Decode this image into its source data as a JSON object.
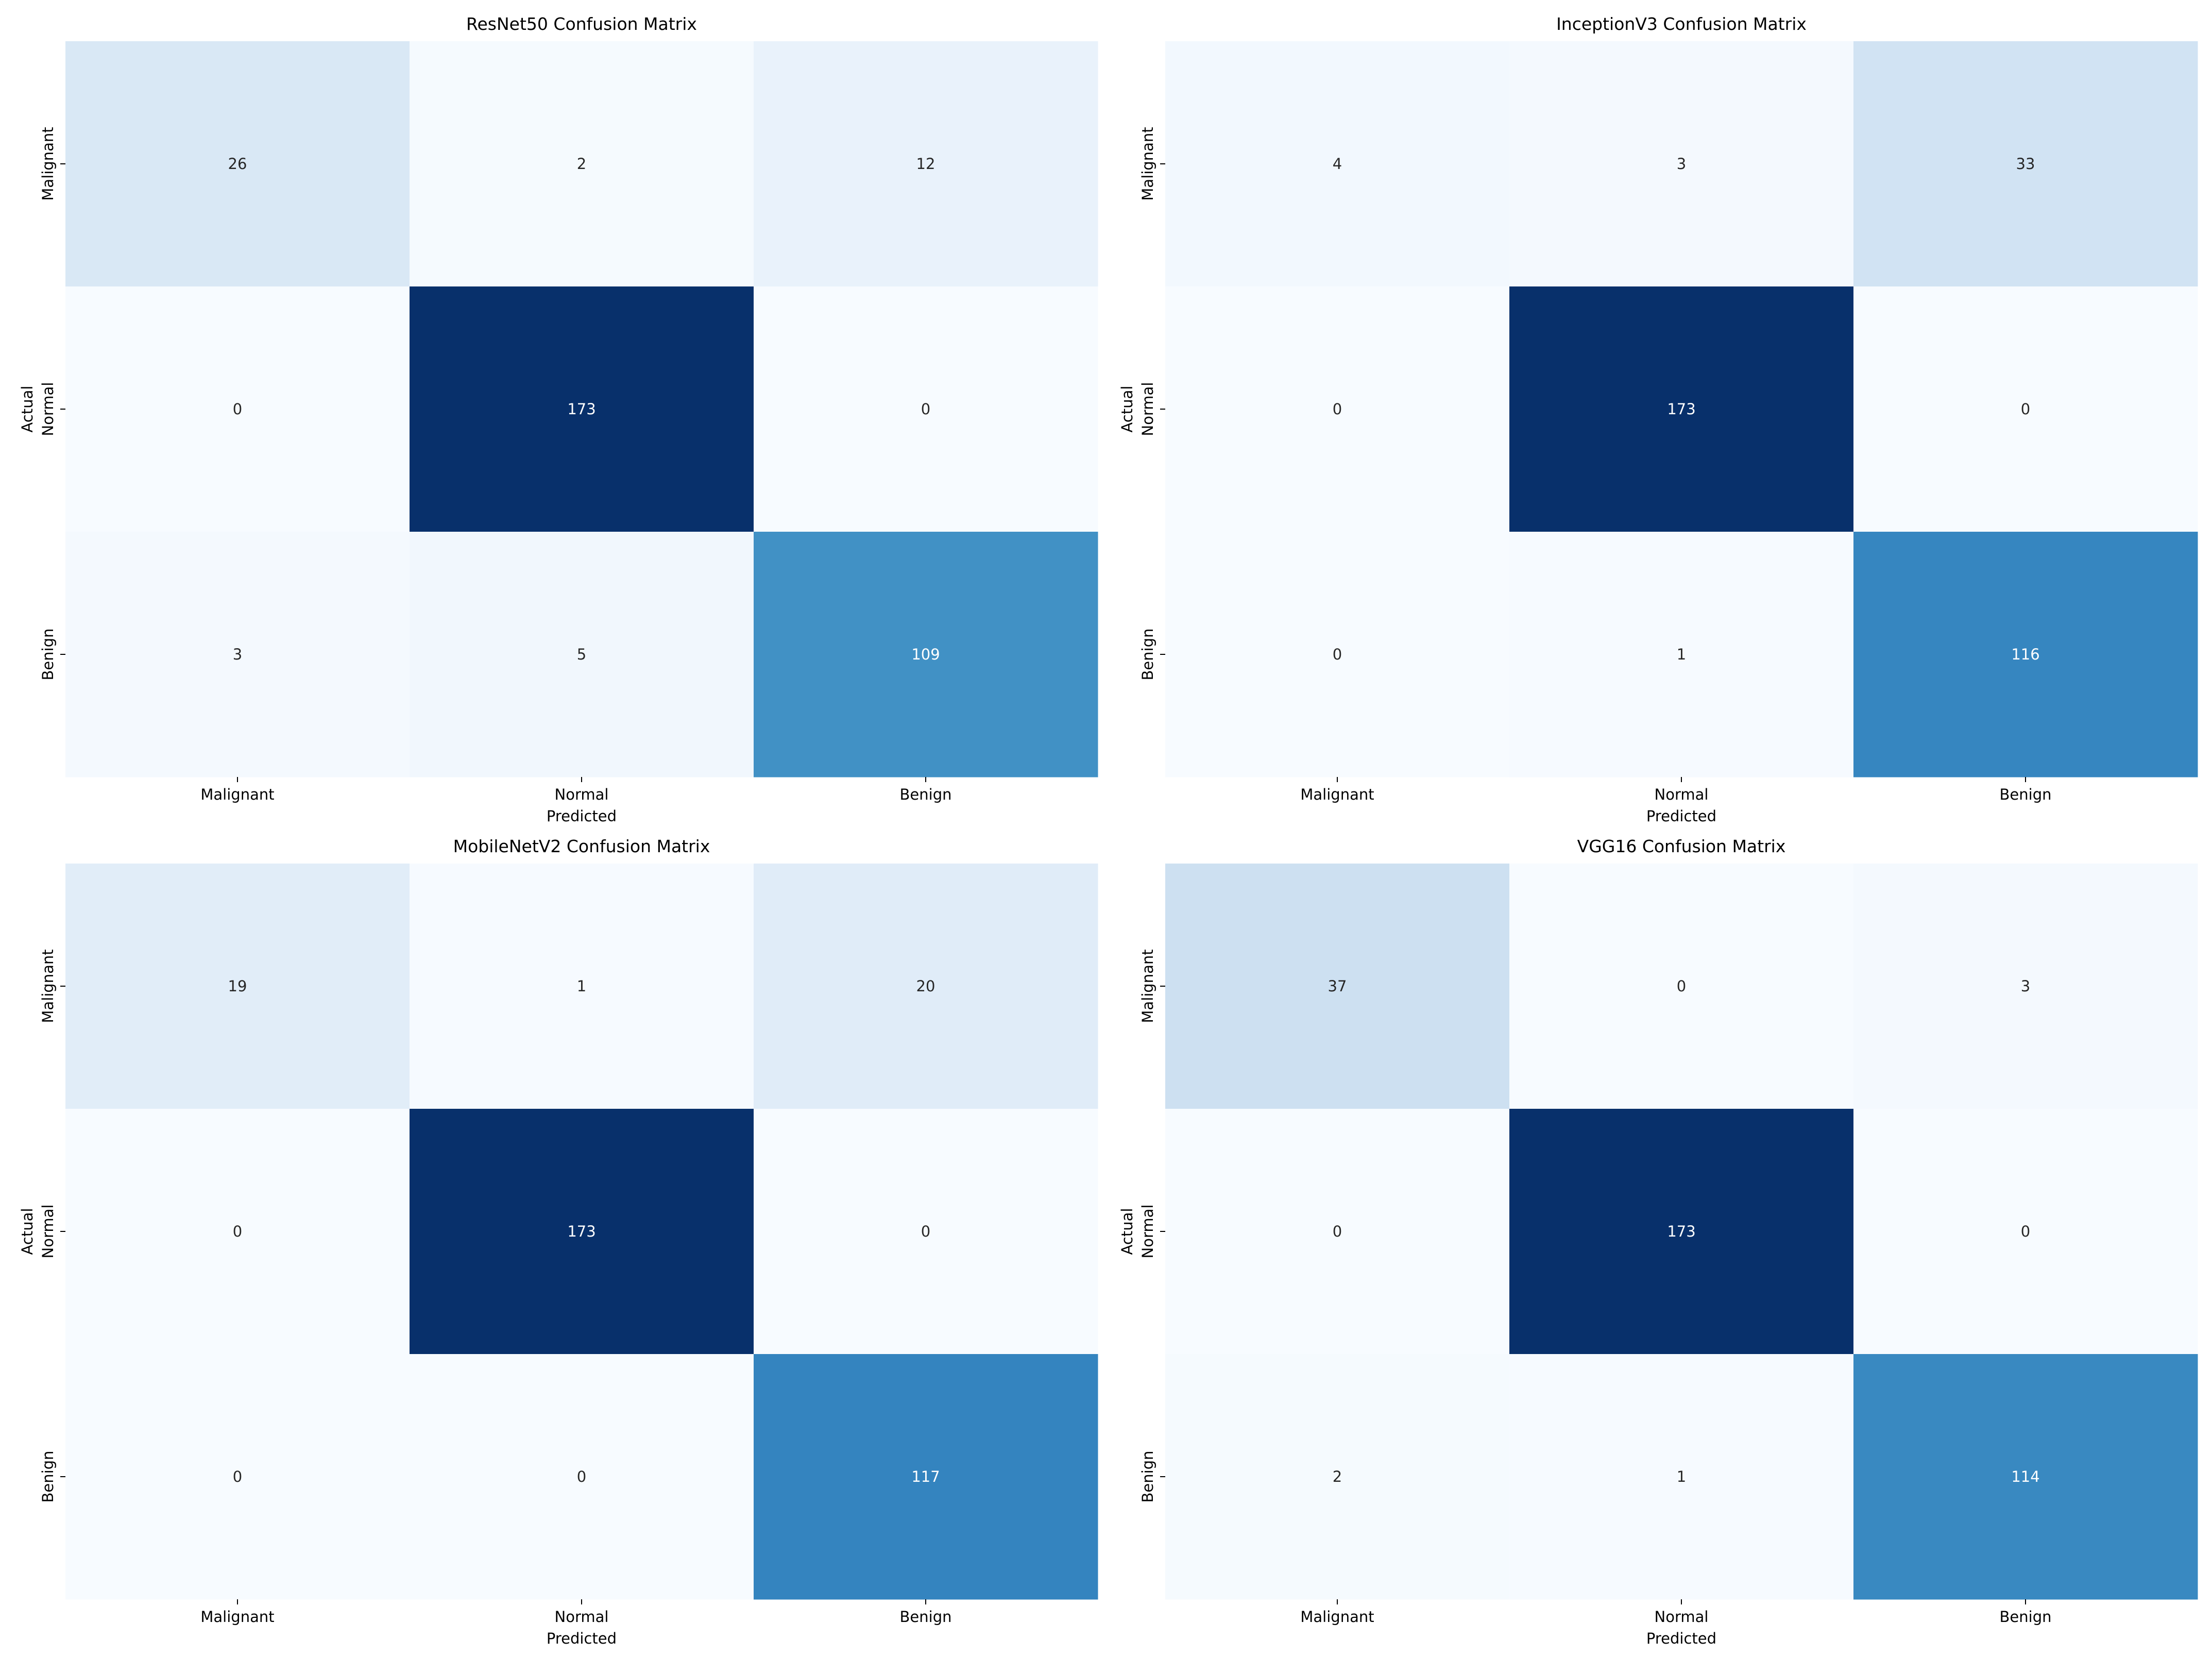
{
  "chart_data": [
    {
      "type": "heatmap",
      "title": "ResNet50 Confusion Matrix",
      "xlabel": "Predicted",
      "ylabel": "Actual",
      "x_categories": [
        "Malignant",
        "Normal",
        "Benign"
      ],
      "y_categories": [
        "Malignant",
        "Normal",
        "Benign"
      ],
      "values": [
        [
          26,
          2,
          12
        ],
        [
          0,
          173,
          0
        ],
        [
          3,
          5,
          109
        ]
      ],
      "colormap": "Blues",
      "colorbar": false,
      "grid": false
    },
    {
      "type": "heatmap",
      "title": "InceptionV3 Confusion Matrix",
      "xlabel": "Predicted",
      "ylabel": "Actual",
      "x_categories": [
        "Malignant",
        "Normal",
        "Benign"
      ],
      "y_categories": [
        "Malignant",
        "Normal",
        "Benign"
      ],
      "values": [
        [
          4,
          3,
          33
        ],
        [
          0,
          173,
          0
        ],
        [
          0,
          1,
          116
        ]
      ],
      "colormap": "Blues",
      "colorbar": false,
      "grid": false
    },
    {
      "type": "heatmap",
      "title": "MobileNetV2 Confusion Matrix",
      "xlabel": "Predicted",
      "ylabel": "Actual",
      "x_categories": [
        "Malignant",
        "Normal",
        "Benign"
      ],
      "y_categories": [
        "Malignant",
        "Normal",
        "Benign"
      ],
      "values": [
        [
          19,
          1,
          20
        ],
        [
          0,
          173,
          0
        ],
        [
          0,
          0,
          117
        ]
      ],
      "colormap": "Blues",
      "colorbar": false,
      "grid": false
    },
    {
      "type": "heatmap",
      "title": "VGG16 Confusion Matrix",
      "xlabel": "Predicted",
      "ylabel": "Actual",
      "x_categories": [
        "Malignant",
        "Normal",
        "Benign"
      ],
      "y_categories": [
        "Malignant",
        "Normal",
        "Benign"
      ],
      "values": [
        [
          37,
          0,
          3
        ],
        [
          0,
          173,
          0
        ],
        [
          2,
          1,
          114
        ]
      ],
      "colormap": "Blues",
      "colorbar": false,
      "grid": false
    }
  ]
}
